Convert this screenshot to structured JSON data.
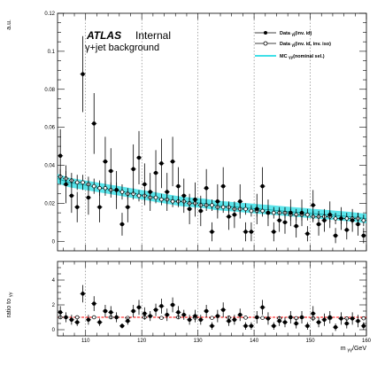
{
  "chart_data": {
    "type": "scatter",
    "title": "",
    "annotations": {
      "experiment": "ATLAS",
      "status": "Internal",
      "subtitle": "γ+jet background"
    },
    "xlabel": "m_{γγ}/GeV",
    "xlabel_parts": {
      "main": "m",
      "sub": "γγ",
      "unit": "/GeV"
    },
    "xlim": [
      105,
      160
    ],
    "x_tick_labels": [
      "110",
      "120",
      "130",
      "140",
      "150",
      "160"
    ],
    "grid": {
      "vertical_dotted_at": [
        110,
        120,
        130,
        140,
        150
      ]
    },
    "legend_position": "top-right",
    "legend": [
      {
        "main": "Data ",
        "sub": "γj",
        "rest": "(inv. id)"
      },
      {
        "main": "Data ",
        "sub": "γj",
        "rest": "(inv. id, inv. iso)"
      },
      {
        "main": "MC ",
        "sub": "γγ",
        "rest": "(nominal sel.)"
      }
    ],
    "top_panel": {
      "ylabel": "a.u.",
      "ylim": [
        -0.005,
        0.12
      ],
      "y_tick_labels": [
        "0",
        "0.02",
        "0.04",
        "0.06",
        "0.08",
        "0.1",
        "0.12"
      ],
      "series": [
        {
          "name": "Data γj(inv. id)",
          "marker": "filled-circle",
          "x": [
            105.5,
            106.5,
            107.5,
            108.5,
            109.5,
            110.5,
            111.5,
            112.5,
            113.5,
            114.5,
            115.5,
            116.5,
            117.5,
            118.5,
            119.5,
            120.5,
            121.5,
            122.5,
            123.5,
            124.5,
            125.5,
            126.5,
            127.5,
            128.5,
            129.5,
            130.5,
            131.5,
            132.5,
            133.5,
            134.5,
            135.5,
            136.5,
            137.5,
            138.5,
            139.5,
            140.5,
            141.5,
            142.5,
            143.5,
            144.5,
            145.5,
            146.5,
            147.5,
            148.5,
            149.5,
            150.5,
            151.5,
            152.5,
            153.5,
            154.5,
            155.5,
            156.5,
            157.5,
            158.5,
            159.5
          ],
          "y": [
            0.045,
            0.03,
            0.024,
            0.018,
            0.088,
            0.023,
            0.062,
            0.018,
            0.042,
            0.037,
            0.027,
            0.009,
            0.018,
            0.038,
            0.044,
            0.03,
            0.026,
            0.036,
            0.041,
            0.026,
            0.042,
            0.029,
            0.024,
            0.017,
            0.022,
            0.016,
            0.028,
            0.005,
            0.021,
            0.029,
            0.013,
            0.014,
            0.021,
            0.005,
            0.005,
            0.017,
            0.029,
            0.015,
            0.005,
            0.011,
            0.01,
            0.015,
            0.008,
            0.015,
            0.004,
            0.019,
            0.009,
            0.011,
            0.014,
            0.003,
            0.012,
            0.006,
            0.011,
            0.009,
            0.003
          ],
          "err": [
            0.014,
            0.01,
            0.009,
            0.008,
            0.02,
            0.009,
            0.016,
            0.008,
            0.013,
            0.012,
            0.01,
            0.006,
            0.008,
            0.013,
            0.014,
            0.011,
            0.01,
            0.012,
            0.013,
            0.01,
            0.013,
            0.01,
            0.009,
            0.008,
            0.009,
            0.008,
            0.01,
            0.005,
            0.009,
            0.01,
            0.007,
            0.007,
            0.009,
            0.005,
            0.005,
            0.008,
            0.01,
            0.007,
            0.005,
            0.006,
            0.006,
            0.007,
            0.006,
            0.007,
            0.004,
            0.008,
            0.006,
            0.006,
            0.007,
            0.004,
            0.006,
            0.005,
            0.006,
            0.006,
            0.004
          ]
        },
        {
          "name": "Data γj(inv. id, inv. iso)",
          "marker": "open-circle",
          "x": [
            105.5,
            106.5,
            107.5,
            108.5,
            109.5,
            110.5,
            111.5,
            112.5,
            113.5,
            114.5,
            115.5,
            116.5,
            117.5,
            118.5,
            119.5,
            120.5,
            121.5,
            122.5,
            123.5,
            124.5,
            125.5,
            126.5,
            127.5,
            128.5,
            129.5,
            130.5,
            131.5,
            132.5,
            133.5,
            134.5,
            135.5,
            136.5,
            137.5,
            138.5,
            139.5,
            140.5,
            141.5,
            142.5,
            143.5,
            144.5,
            145.5,
            146.5,
            147.5,
            148.5,
            149.5,
            150.5,
            151.5,
            152.5,
            153.5,
            154.5,
            155.5,
            156.5,
            157.5,
            158.5,
            159.5
          ],
          "y": [
            0.034,
            0.033,
            0.032,
            0.031,
            0.031,
            0.03,
            0.029,
            0.028,
            0.028,
            0.027,
            0.027,
            0.026,
            0.025,
            0.025,
            0.024,
            0.024,
            0.023,
            0.023,
            0.022,
            0.022,
            0.021,
            0.021,
            0.021,
            0.02,
            0.02,
            0.019,
            0.019,
            0.019,
            0.018,
            0.018,
            0.018,
            0.017,
            0.017,
            0.017,
            0.016,
            0.016,
            0.016,
            0.015,
            0.015,
            0.015,
            0.015,
            0.014,
            0.014,
            0.014,
            0.014,
            0.013,
            0.013,
            0.013,
            0.013,
            0.012,
            0.012,
            0.012,
            0.012,
            0.012,
            0.011
          ],
          "err": [
            0.004,
            0.004,
            0.004,
            0.004,
            0.004,
            0.004,
            0.004,
            0.004,
            0.004,
            0.004,
            0.004,
            0.004,
            0.003,
            0.003,
            0.003,
            0.003,
            0.003,
            0.003,
            0.003,
            0.003,
            0.003,
            0.003,
            0.003,
            0.003,
            0.003,
            0.003,
            0.003,
            0.003,
            0.003,
            0.003,
            0.003,
            0.003,
            0.003,
            0.003,
            0.003,
            0.003,
            0.003,
            0.003,
            0.003,
            0.003,
            0.003,
            0.003,
            0.003,
            0.003,
            0.003,
            0.003,
            0.003,
            0.003,
            0.003,
            0.003,
            0.003,
            0.003,
            0.003,
            0.003,
            0.003
          ]
        },
        {
          "name": "MC γγ(nominal sel.)",
          "marker": "band",
          "x": [
            105,
            107,
            109,
            111,
            113,
            115,
            117,
            119,
            121,
            123,
            125,
            127,
            129,
            131,
            133,
            135,
            137,
            139,
            141,
            143,
            145,
            147,
            149,
            151,
            153,
            155,
            157,
            160
          ],
          "y": [
            0.033,
            0.031,
            0.03,
            0.029,
            0.028,
            0.027,
            0.026,
            0.025,
            0.024,
            0.023,
            0.022,
            0.021,
            0.0205,
            0.02,
            0.019,
            0.0185,
            0.018,
            0.0175,
            0.017,
            0.0165,
            0.016,
            0.0155,
            0.015,
            0.0145,
            0.014,
            0.0135,
            0.013,
            0.012
          ]
        }
      ]
    },
    "bottom_panel": {
      "ylabel": "ratio to γγ",
      "ylabel_parts": {
        "main": "ratio to ",
        "sub": "γγ"
      },
      "ylim": [
        -0.5,
        5.5
      ],
      "y_tick_labels": [
        "0",
        "2",
        "4"
      ],
      "reference_line": 1,
      "ratio_series": [
        {
          "name": "Data γj(inv. id) / MC γγ",
          "marker": "filled-circle",
          "x": [
            105.5,
            106.5,
            107.5,
            108.5,
            109.5,
            110.5,
            111.5,
            112.5,
            113.5,
            114.5,
            115.5,
            116.5,
            117.5,
            118.5,
            119.5,
            120.5,
            121.5,
            122.5,
            123.5,
            124.5,
            125.5,
            126.5,
            127.5,
            128.5,
            129.5,
            130.5,
            131.5,
            132.5,
            133.5,
            134.5,
            135.5,
            136.5,
            137.5,
            138.5,
            139.5,
            140.5,
            141.5,
            142.5,
            143.5,
            144.5,
            145.5,
            146.5,
            147.5,
            148.5,
            149.5,
            150.5,
            151.5,
            152.5,
            153.5,
            154.5,
            155.5,
            156.5,
            157.5,
            158.5,
            159.5
          ],
          "y": [
            1.4,
            1.0,
            0.8,
            0.6,
            2.9,
            0.8,
            2.1,
            0.6,
            1.5,
            1.4,
            1.0,
            0.3,
            0.7,
            1.5,
            1.8,
            1.3,
            1.1,
            1.6,
            1.9,
            1.2,
            2.0,
            1.4,
            1.2,
            0.8,
            1.1,
            0.8,
            1.5,
            0.3,
            1.1,
            1.6,
            0.7,
            0.8,
            1.2,
            0.3,
            0.3,
            1.0,
            1.8,
            0.9,
            0.3,
            0.7,
            0.6,
            1.0,
            0.5,
            1.0,
            0.3,
            1.3,
            0.6,
            0.8,
            1.0,
            0.2,
            0.9,
            0.5,
            0.9,
            0.7,
            0.3
          ],
          "err": [
            0.5,
            0.4,
            0.4,
            0.3,
            0.7,
            0.4,
            0.6,
            0.3,
            0.5,
            0.5,
            0.4,
            0.2,
            0.3,
            0.5,
            0.6,
            0.5,
            0.4,
            0.5,
            0.6,
            0.5,
            0.6,
            0.5,
            0.4,
            0.4,
            0.5,
            0.4,
            0.5,
            0.3,
            0.5,
            0.6,
            0.4,
            0.4,
            0.5,
            0.3,
            0.3,
            0.5,
            0.6,
            0.5,
            0.3,
            0.4,
            0.4,
            0.5,
            0.4,
            0.5,
            0.3,
            0.6,
            0.4,
            0.5,
            0.5,
            0.3,
            0.5,
            0.4,
            0.5,
            0.5,
            0.3
          ]
        },
        {
          "name": "Data γj(inv. id, inv. iso) / MC γγ",
          "marker": "open-circle",
          "x": [
            105.5,
            108.5,
            111.5,
            114.5,
            117.5,
            120.5,
            123.5,
            126.5,
            129.5,
            132.5,
            135.5,
            138.5,
            141.5,
            144.5,
            147.5,
            150.5,
            153.5,
            156.5,
            159.5
          ],
          "y": [
            1.0,
            1.0,
            1.0,
            1.0,
            0.95,
            1.0,
            0.95,
            1.0,
            0.97,
            0.95,
            0.97,
            0.97,
            0.95,
            0.92,
            0.93,
            0.92,
            0.93,
            0.9,
            0.92
          ],
          "err": [
            0.12,
            0.12,
            0.12,
            0.12,
            0.12,
            0.12,
            0.12,
            0.12,
            0.12,
            0.12,
            0.12,
            0.12,
            0.12,
            0.12,
            0.12,
            0.12,
            0.12,
            0.12,
            0.12
          ]
        }
      ]
    },
    "colors": {
      "data_inv_id": "#000000",
      "data_inv_iso": "#000000",
      "mc_band": "#40e0e8",
      "mc_line": "#0a9aa0",
      "reference_line": "#ff0000"
    }
  }
}
